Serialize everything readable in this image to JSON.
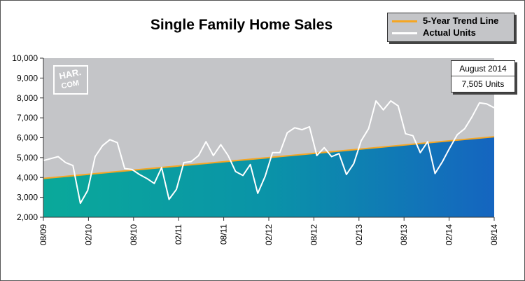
{
  "chart_data": {
    "type": "line",
    "title": "Single Family Home Sales",
    "xlabel": "",
    "ylabel": "",
    "ylim": [
      2000,
      10000
    ],
    "y_ticks": [
      2000,
      3000,
      4000,
      5000,
      6000,
      7000,
      8000,
      9000,
      10000
    ],
    "y_tick_labels": [
      "2,000",
      "3,000",
      "4,000",
      "5,000",
      "6,000",
      "7,000",
      "8,000",
      "9,000",
      "10,000"
    ],
    "x_tick_labels": [
      "08/09",
      "02/10",
      "08/10",
      "02/11",
      "08/11",
      "02/12",
      "08/12",
      "02/13",
      "08/13",
      "02/14",
      "08/14"
    ],
    "grid": false,
    "legend_position": "top-right",
    "series": [
      {
        "name": "Actual Units",
        "color": "#ffffff",
        "values": [
          4850,
          4950,
          5050,
          4750,
          4600,
          2700,
          3350,
          5050,
          5600,
          5900,
          5750,
          4450,
          4400,
          4150,
          3950,
          3700,
          4500,
          2900,
          3400,
          4750,
          4800,
          5100,
          5800,
          5100,
          5650,
          5100,
          4300,
          4100,
          4650,
          3200,
          4050,
          5250,
          5250,
          6250,
          6500,
          6400,
          6550,
          5100,
          5500,
          5050,
          5200,
          4150,
          4700,
          5850,
          6450,
          7850,
          7400,
          7850,
          7600,
          6200,
          6100,
          5250,
          5800,
          4200,
          4800,
          5500,
          6150,
          6450,
          7050,
          7750,
          7700,
          7505
        ]
      },
      {
        "name": "5-Year Trend Line",
        "color": "#f5a623",
        "values": [
          3950,
          6050
        ]
      }
    ],
    "annotations": [
      {
        "line1": "August 2014",
        "line2": "7,505 Units"
      }
    ]
  },
  "legend": {
    "trend_label": "5-Year Trend Line",
    "actual_label": "Actual Units"
  },
  "callout": {
    "month": "August 2014",
    "units": "7,505 Units"
  },
  "watermark": {
    "line1": "HAR.",
    "line2": "COM"
  }
}
